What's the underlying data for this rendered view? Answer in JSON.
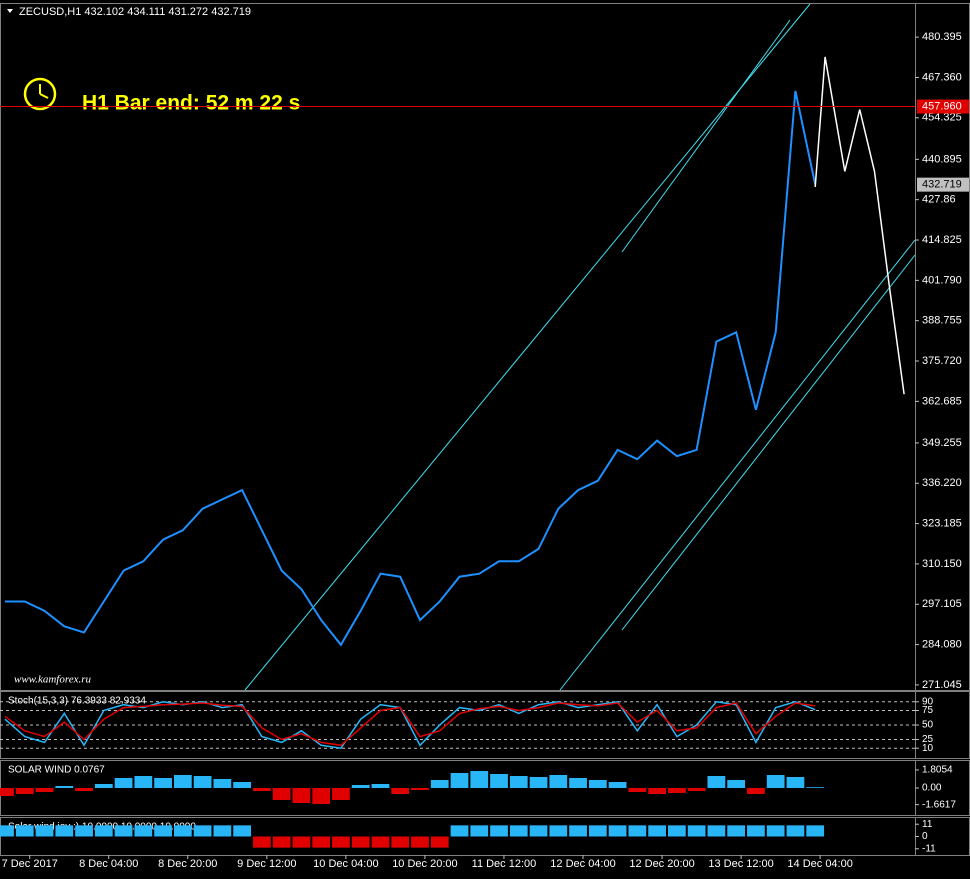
{
  "chart_data": [
    {
      "type": "line",
      "title": "ZECUSD,H1  432.102 434.111 431.272 432.719",
      "annotation": "H1 Bar end: 52 m 22 s",
      "watermark": "www.kamforex.ru",
      "xlim": [
        0,
        184
      ],
      "ylim": [
        269.4,
        491.1
      ],
      "yticks": [
        480.395,
        {
          "value": 467.36,
          "label": "467.360"
        },
        454.325,
        440.895,
        427.86,
        {
          "value": 414.825,
          "label": "414.825"
        },
        {
          "value": 401.79,
          "label": "401.790"
        },
        388.755,
        {
          "value": 375.72,
          "label": "375.720"
        },
        362.685,
        349.255,
        {
          "value": 336.22,
          "label": "336.220"
        },
        323.185,
        {
          "value": 310.15,
          "label": "310.150"
        },
        297.105,
        {
          "value": 284.08,
          "label": "284.080"
        },
        271.045
      ],
      "x": [
        0,
        4,
        8,
        12,
        16,
        20,
        24,
        28,
        32,
        36,
        40,
        44,
        48,
        52,
        56,
        60,
        64,
        68,
        72,
        76,
        80,
        84,
        88,
        92,
        96,
        100,
        104,
        108,
        112,
        116,
        120,
        124,
        128,
        132,
        136,
        140,
        144,
        148,
        152,
        156,
        160,
        164
      ],
      "values": [
        298,
        298,
        295,
        290,
        288,
        298,
        308,
        311,
        318,
        321,
        328,
        331,
        334,
        321,
        308,
        302,
        292,
        284,
        295,
        307,
        306,
        292,
        298,
        306,
        307,
        311,
        311,
        315,
        328,
        334,
        337,
        347,
        344,
        350,
        345,
        347,
        382,
        385,
        360,
        385,
        463,
        432.719
      ],
      "color": "#1e90ff",
      "projection": {
        "x": [
          164,
          166,
          170,
          173,
          176,
          179,
          182
        ],
        "values": [
          432,
          474,
          437,
          457,
          437,
          400,
          365
        ],
        "color": "#ffffff"
      },
      "price_line": {
        "value": 457.96,
        "label": "457.960",
        "color": "#e00000"
      },
      "last_price": {
        "value": 432.719,
        "label": "432.719",
        "color": "#c0c0c0"
      }
    },
    {
      "type": "line",
      "title": "Stoch(15,3,3) 76.3933 82.9334",
      "xlim": [
        0,
        184
      ],
      "ylim": [
        0,
        100
      ],
      "yticks": [
        90,
        75,
        50,
        25,
        10
      ],
      "grid": true,
      "x": [
        0,
        4,
        8,
        12,
        16,
        20,
        24,
        28,
        32,
        36,
        40,
        44,
        48,
        52,
        56,
        60,
        64,
        68,
        72,
        76,
        80,
        84,
        88,
        92,
        96,
        100,
        104,
        108,
        112,
        116,
        120,
        124,
        128,
        132,
        136,
        140,
        144,
        148,
        152,
        156,
        160,
        164
      ],
      "series": [
        {
          "color": "#29b6f6",
          "values": [
            60,
            30,
            20,
            70,
            15,
            75,
            85,
            80,
            90,
            85,
            90,
            80,
            85,
            30,
            20,
            40,
            15,
            10,
            60,
            85,
            80,
            15,
            50,
            80,
            75,
            85,
            70,
            85,
            90,
            80,
            85,
            90,
            40,
            85,
            30,
            50,
            90,
            85,
            20,
            80,
            90,
            76.3933
          ]
        },
        {
          "color": "#e00000",
          "values": [
            65,
            40,
            30,
            55,
            25,
            60,
            80,
            82,
            85,
            86,
            88,
            84,
            82,
            45,
            25,
            35,
            20,
            15,
            45,
            75,
            80,
            30,
            40,
            70,
            78,
            82,
            75,
            80,
            88,
            85,
            83,
            88,
            55,
            75,
            40,
            45,
            80,
            88,
            35,
            65,
            88,
            82.9334
          ]
        }
      ]
    },
    {
      "type": "bar",
      "title": "SOLAR WIND 0.0767",
      "xlim": [
        0,
        184
      ],
      "ylim": [
        -2.3,
        2.3
      ],
      "yticks": [
        1.8054,
        {
          "value": 0,
          "label": "0.00"
        },
        -1.6617
      ],
      "up_color": "#29b6f6",
      "down_color": "#e00000",
      "x": [
        0,
        4,
        8,
        12,
        16,
        20,
        24,
        28,
        32,
        36,
        40,
        44,
        48,
        52,
        56,
        60,
        64,
        68,
        72,
        76,
        80,
        84,
        88,
        92,
        96,
        100,
        104,
        108,
        112,
        116,
        120,
        124,
        128,
        132,
        136,
        140,
        144,
        148,
        152,
        156,
        160,
        164
      ],
      "values": [
        -0.8,
        -0.6,
        -0.4,
        0.2,
        -0.3,
        0.4,
        1.0,
        1.2,
        1.0,
        1.3,
        1.2,
        0.9,
        0.6,
        -0.3,
        -1.2,
        -1.5,
        -1.6,
        -1.2,
        0.3,
        0.4,
        -0.6,
        -0.2,
        0.8,
        1.5,
        1.7,
        1.4,
        1.2,
        1.1,
        1.3,
        1.0,
        0.8,
        0.6,
        -0.4,
        -0.6,
        -0.5,
        -0.3,
        1.2,
        0.8,
        -0.6,
        1.3,
        1.1,
        0.0767
      ]
    },
    {
      "type": "bar",
      "title": "Solar wind joy :) 10.0000 10.0000 10.0000",
      "xlim": [
        0,
        184
      ],
      "ylim": [
        -13,
        13
      ],
      "yticks": [
        11,
        0,
        -11
      ],
      "up_color": "#29b6f6",
      "down_color": "#e00000",
      "xticks": [
        {
          "value": 5,
          "label": "7 Dec 2017"
        },
        {
          "value": 21,
          "label": "8 Dec 04:00"
        },
        {
          "value": 37,
          "label": "8 Dec 20:00"
        },
        {
          "value": 53,
          "label": "9 Dec 12:00"
        },
        {
          "value": 69,
          "label": "10 Dec 04:00"
        },
        {
          "value": 85,
          "label": "10 Dec 20:00"
        },
        {
          "value": 101,
          "label": "11 Dec 12:00"
        },
        {
          "value": 117,
          "label": "12 Dec 04:00"
        },
        {
          "value": 133,
          "label": "12 Dec 20:00"
        },
        {
          "value": 149,
          "label": "13 Dec 12:00"
        },
        {
          "value": 165,
          "label": "14 Dec 04:00"
        }
      ],
      "x": [
        0,
        4,
        8,
        12,
        16,
        20,
        24,
        28,
        32,
        36,
        40,
        44,
        48,
        52,
        56,
        60,
        64,
        68,
        72,
        76,
        80,
        84,
        88,
        92,
        96,
        100,
        104,
        108,
        112,
        116,
        120,
        124,
        128,
        132,
        136,
        140,
        144,
        148,
        152,
        156,
        160,
        164
      ],
      "values": [
        10,
        10,
        10,
        10,
        10,
        10,
        10,
        10,
        10,
        10,
        10,
        10,
        10,
        -10,
        -10,
        -10,
        -10,
        -10,
        -10,
        -10,
        -10,
        -10,
        -10,
        10,
        10,
        10,
        10,
        10,
        10,
        10,
        10,
        10,
        10,
        10,
        10,
        10,
        10,
        10,
        10,
        10,
        10,
        10
      ]
    }
  ]
}
